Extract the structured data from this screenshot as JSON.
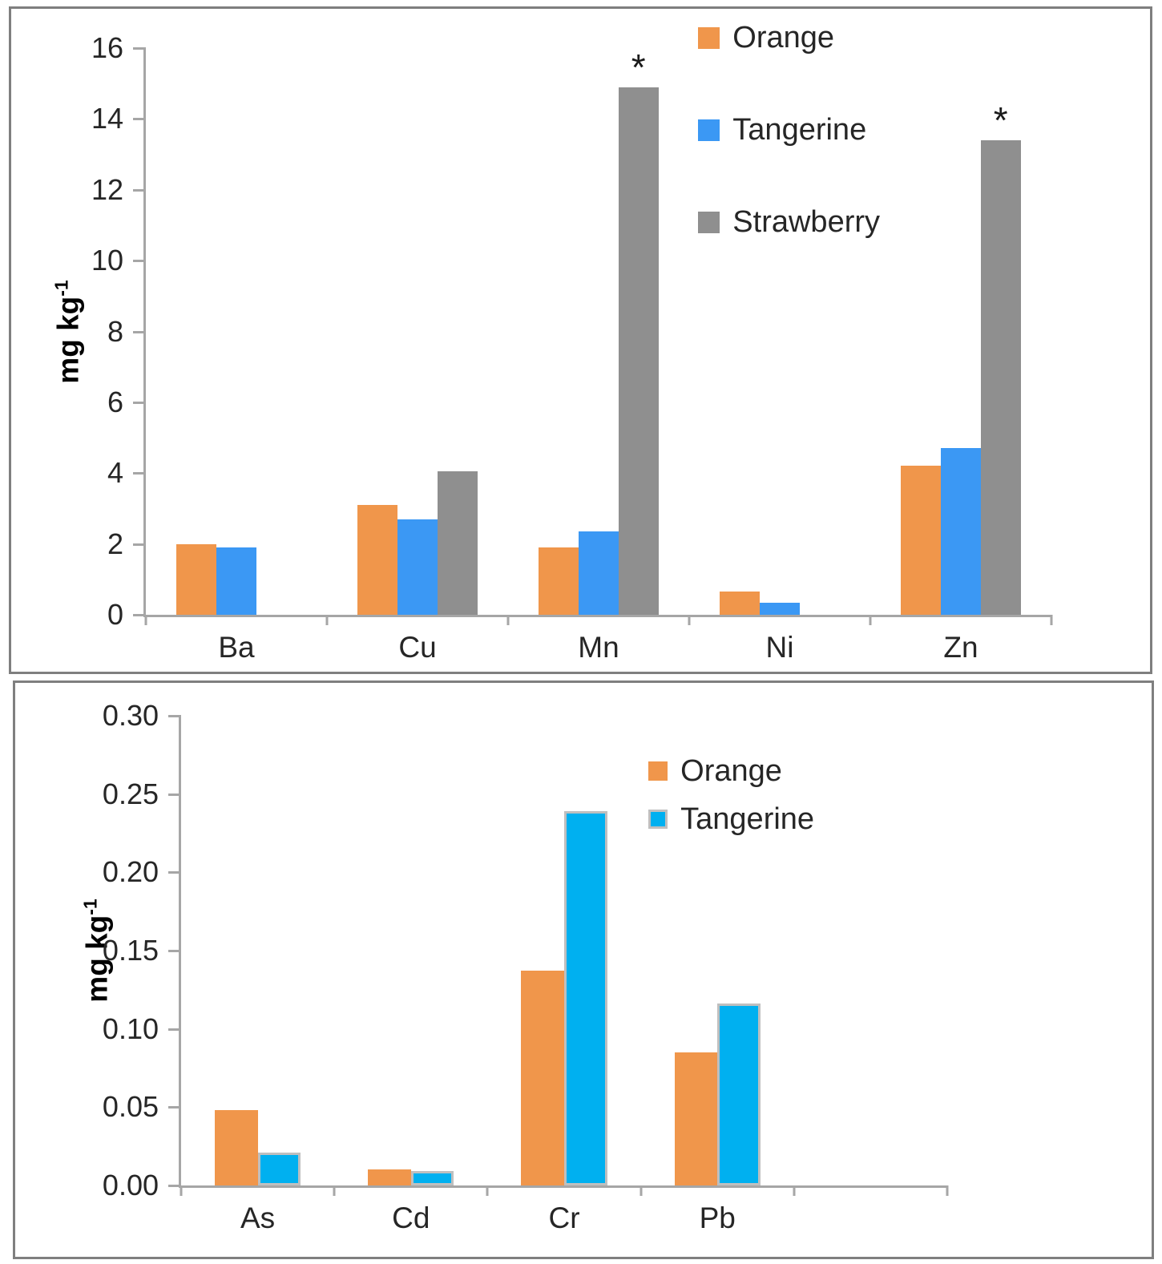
{
  "page": {
    "background": "#FFFFFF",
    "panel_border_color": "#7F7F7F",
    "axis_color": "#A6A6A6",
    "text_color": "#262626"
  },
  "chart_data": [
    {
      "name": "trace-elements-high",
      "type": "bar",
      "ylabel_base": "mg kg",
      "ylabel_exp": "-1",
      "ylim": [
        0,
        16
      ],
      "grid": false,
      "legend_position": "top-right-vertical",
      "yticks": [
        {
          "label": "16",
          "value": 16
        },
        {
          "label": "14",
          "value": 14
        },
        {
          "label": "12",
          "value": 12
        },
        {
          "label": "10",
          "value": 10
        },
        {
          "label": "8",
          "value": 8
        },
        {
          "label": "6",
          "value": 6
        },
        {
          "label": "4",
          "value": 4
        },
        {
          "label": "2",
          "value": 2
        },
        {
          "label": "0",
          "value": 0
        }
      ],
      "categories": [
        "Ba",
        "Cu",
        "Mn",
        "Ni",
        "Zn"
      ],
      "series": [
        {
          "name": "Orange",
          "color": "#F0964B",
          "values": [
            2.0,
            3.1,
            1.9,
            0.65,
            4.2
          ],
          "annotations": [
            "",
            "",
            "",
            "",
            ""
          ]
        },
        {
          "name": "Tangerine",
          "color": "#3B98F4",
          "values": [
            1.9,
            2.7,
            2.35,
            0.33,
            4.7
          ],
          "annotations": [
            "",
            "",
            "",
            "",
            ""
          ]
        },
        {
          "name": "Strawberry",
          "color": "#8F8F8F",
          "values": [
            null,
            4.05,
            14.9,
            null,
            13.4
          ],
          "annotations": [
            "",
            "",
            "*",
            "",
            "*"
          ]
        }
      ]
    },
    {
      "name": "trace-elements-low",
      "type": "bar",
      "ylabel_base": "mg kg",
      "ylabel_exp": "-1",
      "ylim": [
        0,
        0.3
      ],
      "grid": false,
      "legend_position": "top-right-vertical",
      "yticks": [
        {
          "label": "0.30",
          "value": 0.3
        },
        {
          "label": "0.25",
          "value": 0.25
        },
        {
          "label": "0.20",
          "value": 0.2
        },
        {
          "label": "0.15",
          "value": 0.15
        },
        {
          "label": "0.10",
          "value": 0.1
        },
        {
          "label": "0.05",
          "value": 0.05
        },
        {
          "label": "0.00",
          "value": 0.0
        }
      ],
      "categories": [
        "As",
        "Cd",
        "Cr",
        "Pb",
        ""
      ],
      "series": [
        {
          "name": "Orange",
          "color": "#F0964B",
          "values": [
            0.048,
            0.01,
            0.137,
            0.085,
            null
          ],
          "annotations": [
            "",
            "",
            "",
            "",
            ""
          ]
        },
        {
          "name": "Tangerine",
          "color": "#00B0F0",
          "border_color": "#BFBFBF",
          "values": [
            0.021,
            0.009,
            0.239,
            0.116,
            null
          ],
          "annotations": [
            "",
            "",
            "",
            "",
            ""
          ]
        }
      ]
    }
  ]
}
